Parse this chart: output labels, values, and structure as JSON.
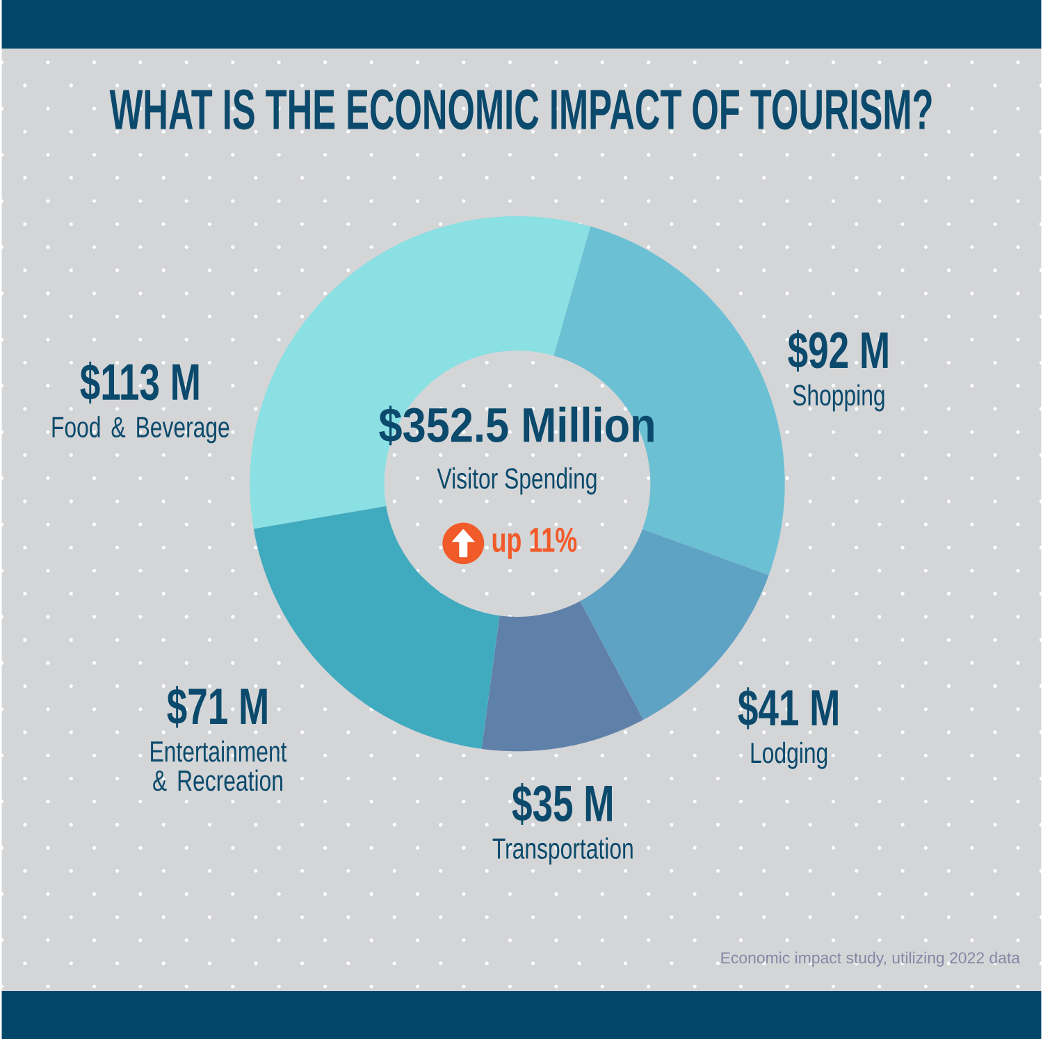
{
  "chart_data": {
    "type": "donut",
    "title": "WHAT IS THE ECONOMIC IMPACT OF TOURISM?",
    "categories": [
      "Food & Beverage",
      "Shopping",
      "Lodging",
      "Transportation",
      "Entertainment & Recreation"
    ],
    "values": [
      113,
      92,
      41,
      35,
      71
    ],
    "colors": [
      "#8ae0e3",
      "#6bc0d4",
      "#5ea2c4",
      "#5f80a8",
      "#40aabf"
    ],
    "value_labels": [
      "$113 M",
      "$92 M",
      "$41 M",
      "$35 M",
      "$71 M"
    ],
    "annotations": [
      "$352.5 Million",
      "Visitor Spending",
      "up 11%",
      "Economic impact study, utilizing 2022 data"
    ]
  }
}
